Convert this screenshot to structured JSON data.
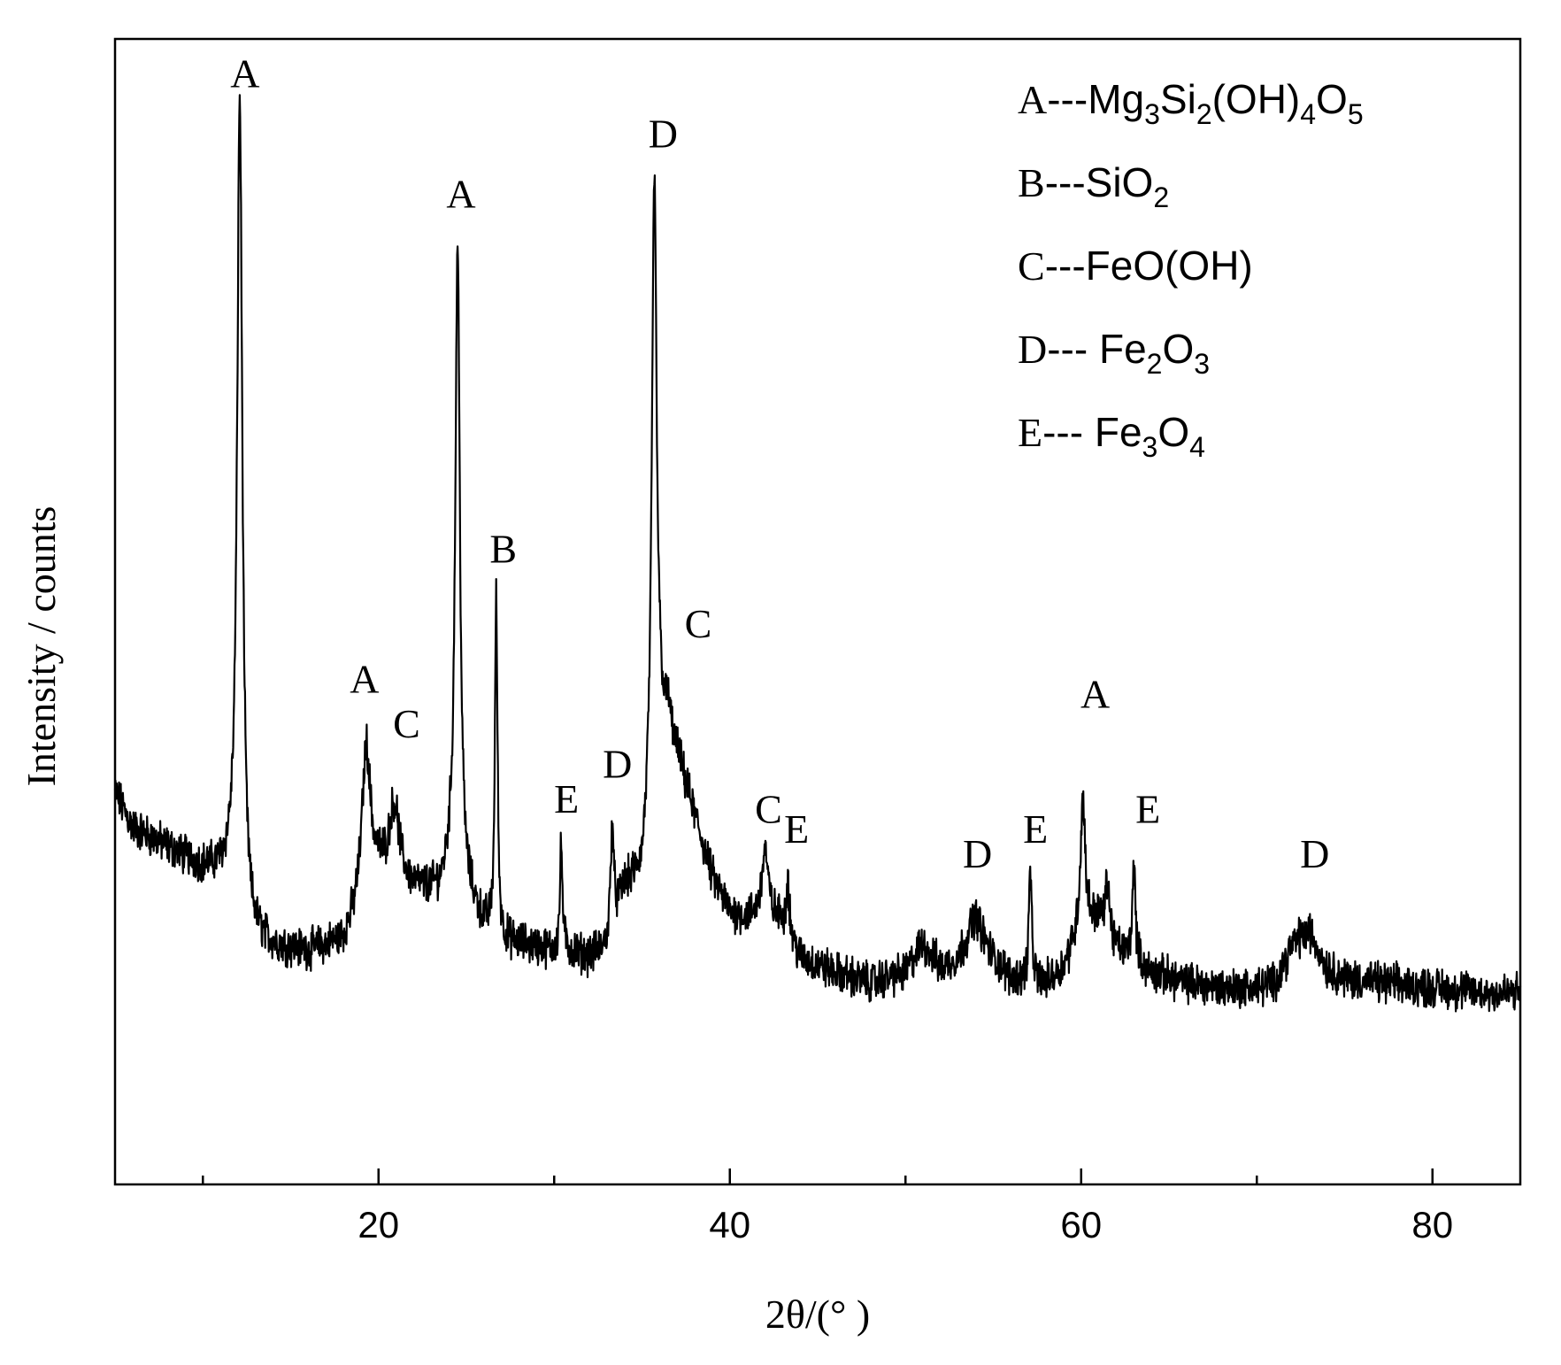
{
  "chart_data": {
    "type": "line",
    "title": "",
    "xlabel": "2θ/(°  )",
    "ylabel": "Intensity / counts",
    "xlim": [
      5,
      85
    ],
    "ylim": [
      0,
      100
    ],
    "grid": false,
    "x_ticks": [
      {
        "value": 20,
        "label": "20"
      },
      {
        "value": 40,
        "label": "40"
      },
      {
        "value": 60,
        "label": "60"
      },
      {
        "value": 80,
        "label": "80"
      }
    ],
    "x_minor_ticks": [
      10,
      30,
      50,
      70
    ],
    "baseline": [
      [
        5,
        30.5
      ],
      [
        6,
        27
      ],
      [
        8,
        25
      ],
      [
        10,
        23
      ],
      [
        11.5,
        22
      ],
      [
        12.5,
        16
      ],
      [
        14,
        15
      ],
      [
        16,
        14.5
      ],
      [
        18,
        15.5
      ],
      [
        19,
        18.5
      ],
      [
        20,
        22
      ],
      [
        21.5,
        21
      ],
      [
        22.5,
        20.5
      ],
      [
        23.5,
        20.5
      ],
      [
        24,
        22
      ],
      [
        25,
        20
      ],
      [
        26,
        17
      ],
      [
        27,
        15.5
      ],
      [
        29,
        15
      ],
      [
        30,
        14.5
      ],
      [
        31,
        14.5
      ],
      [
        32,
        14
      ],
      [
        33,
        15
      ],
      [
        34,
        21
      ],
      [
        35,
        22
      ],
      [
        36,
        36
      ],
      [
        37,
        34
      ],
      [
        38,
        28
      ],
      [
        39,
        22
      ],
      [
        40,
        18.5
      ],
      [
        41,
        18
      ],
      [
        42,
        18.5
      ],
      [
        43,
        17.5
      ],
      [
        44,
        14
      ],
      [
        46,
        12.5
      ],
      [
        48,
        11.5
      ],
      [
        50,
        12.5
      ],
      [
        51,
        15.5
      ],
      [
        52,
        13
      ],
      [
        53,
        14
      ],
      [
        54,
        17.5
      ],
      [
        55,
        14
      ],
      [
        56,
        12
      ],
      [
        58,
        11.5
      ],
      [
        59,
        13
      ],
      [
        60,
        17
      ],
      [
        61,
        18
      ],
      [
        62,
        15
      ],
      [
        63,
        13.5
      ],
      [
        64,
        12.5
      ],
      [
        66,
        11.5
      ],
      [
        68,
        11
      ],
      [
        70,
        11
      ],
      [
        71,
        11.5
      ],
      [
        72,
        15
      ],
      [
        73,
        16.5
      ],
      [
        74,
        13
      ],
      [
        75,
        12
      ],
      [
        77,
        11.5
      ],
      [
        80,
        11
      ],
      [
        83,
        10.5
      ],
      [
        85,
        10.5
      ]
    ],
    "peaks": [
      {
        "x": 12.1,
        "y": 100,
        "w": 0.18,
        "label": "A"
      },
      {
        "x": 19.3,
        "y": 35,
        "w": 0.3,
        "label": "A"
      },
      {
        "x": 20.9,
        "y": 29,
        "w": 0.35,
        "label": "C"
      },
      {
        "x": 24.5,
        "y": 85,
        "w": 0.16,
        "label": "A"
      },
      {
        "x": 26.7,
        "y": 50,
        "w": 0.09,
        "label": "B"
      },
      {
        "x": 30.4,
        "y": 25,
        "w": 0.09,
        "label": "E"
      },
      {
        "x": 33.3,
        "y": 28,
        "w": 0.1,
        "label": "D"
      },
      {
        "x": 35.7,
        "y": 92,
        "w": 0.16,
        "label": "D"
      },
      {
        "x": 36.5,
        "y": 38,
        "w": 0.18,
        "label": "C"
      },
      {
        "x": 42.0,
        "y": 25,
        "w": 0.2,
        "label": "C"
      },
      {
        "x": 43.3,
        "y": 22,
        "w": 0.1,
        "label": "E"
      },
      {
        "x": 53.9,
        "y": 18,
        "w": 0.3,
        "label": "D"
      },
      {
        "x": 57.1,
        "y": 23,
        "w": 0.09,
        "label": "E"
      },
      {
        "x": 60.1,
        "y": 30,
        "w": 0.16,
        "label": "A"
      },
      {
        "x": 61.5,
        "y": 22,
        "w": 0.12,
        "label": ""
      },
      {
        "x": 63.0,
        "y": 23,
        "w": 0.11,
        "label": "E"
      },
      {
        "x": 72.4,
        "y": 16,
        "w": 0.35,
        "label": "D"
      }
    ],
    "peak_labels": [
      {
        "text": "A",
        "x": 12.4,
        "y": 101
      },
      {
        "text": "A",
        "x": 19.2,
        "y": 40.5
      },
      {
        "text": "C",
        "x": 21.6,
        "y": 36
      },
      {
        "text": "A",
        "x": 24.7,
        "y": 89
      },
      {
        "text": "B",
        "x": 27.1,
        "y": 53.5
      },
      {
        "text": "E",
        "x": 30.7,
        "y": 28.5
      },
      {
        "text": "D",
        "x": 33.6,
        "y": 32
      },
      {
        "text": "D",
        "x": 36.2,
        "y": 95
      },
      {
        "text": "C",
        "x": 38.2,
        "y": 46
      },
      {
        "text": "C",
        "x": 42.2,
        "y": 27.5
      },
      {
        "text": "E",
        "x": 43.8,
        "y": 25.5
      },
      {
        "text": "D",
        "x": 54.1,
        "y": 23
      },
      {
        "text": "E",
        "x": 57.4,
        "y": 25.5
      },
      {
        "text": "A",
        "x": 60.8,
        "y": 39
      },
      {
        "text": "E",
        "x": 63.8,
        "y": 27.5
      },
      {
        "text": "D",
        "x": 73.3,
        "y": 23
      }
    ],
    "legend": {
      "position": "top-right",
      "entries": [
        {
          "key": "A",
          "sep": "---",
          "parts": [
            [
              "Mg",
              ""
            ],
            [
              "3",
              "sub"
            ],
            [
              "Si",
              ""
            ],
            [
              "2",
              "sub"
            ],
            [
              "(OH)",
              ""
            ],
            [
              "4",
              "sub"
            ],
            [
              "O",
              ""
            ],
            [
              "5",
              "sub"
            ]
          ]
        },
        {
          "key": "B",
          "sep": "---",
          "parts": [
            [
              "SiO",
              ""
            ],
            [
              "2",
              "sub"
            ]
          ]
        },
        {
          "key": "C",
          "sep": "---",
          "parts": [
            [
              "FeO(OH)",
              ""
            ]
          ]
        },
        {
          "key": "D",
          "sep": "--- ",
          "parts": [
            [
              "Fe",
              ""
            ],
            [
              "2",
              "sub"
            ],
            [
              "O",
              ""
            ],
            [
              "3",
              "sub"
            ]
          ]
        },
        {
          "key": "E",
          "sep": "--- ",
          "parts": [
            [
              "Fe",
              ""
            ],
            [
              "3",
              "sub"
            ],
            [
              "O",
              ""
            ],
            [
              "4",
              "sub"
            ]
          ]
        }
      ]
    },
    "colors": {
      "line": "#000000",
      "axis": "#000000",
      "background": "#ffffff"
    }
  }
}
